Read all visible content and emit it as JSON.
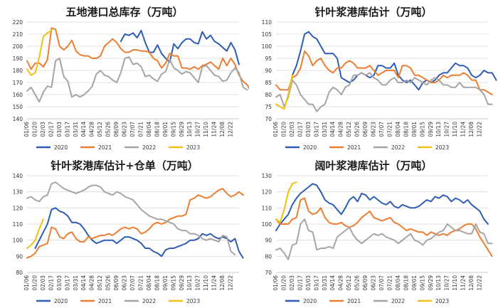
{
  "chart_data": [
    {
      "type": "line",
      "title": "五地港口总库存（万吨）",
      "ylim": [
        140,
        220
      ],
      "yticks": [
        140,
        150,
        160,
        170,
        180,
        190,
        200,
        210,
        220
      ],
      "x_tick_labels": [
        "01/06",
        "01/20",
        "02/03",
        "02/17",
        "03/03",
        "03/17",
        "03/31",
        "04/14",
        "04/28",
        "05/12",
        "05/26",
        "06/09",
        "06/23",
        "07/07",
        "07/21",
        "08/04",
        "08/18",
        "09/01",
        "09/15",
        "09/29",
        "10/13",
        "10/27",
        "11/10",
        "11/24",
        "12/08",
        "12/22"
      ],
      "series": [
        {
          "name": "2020",
          "color": "#2f5db5",
          "start_week": 23,
          "values": [
            204,
            210,
            209,
            211,
            207,
            213,
            203,
            195,
            195,
            201,
            194,
            190,
            187,
            202,
            198,
            203,
            206,
            206,
            203,
            202,
            212,
            206,
            209,
            204,
            202,
            199,
            196,
            203,
            197,
            185
          ]
        },
        {
          "name": "2021",
          "color": "#ed7d31",
          "start_week": 0,
          "values": [
            188,
            181,
            186,
            186,
            183,
            189,
            215,
            214,
            200,
            197,
            200,
            205,
            196,
            193,
            192,
            192,
            190,
            190,
            192,
            200,
            203,
            206,
            203,
            198,
            195,
            195,
            197,
            197,
            196,
            196,
            195,
            190,
            188,
            182,
            186,
            194,
            192,
            192,
            182,
            182,
            181,
            183,
            181,
            184,
            185,
            187,
            184,
            181,
            190,
            184,
            190,
            185,
            176,
            171,
            168,
            162
          ]
        },
        {
          "name": "2022",
          "color": "#a5a5a5",
          "start_week": 0,
          "values": [
            163,
            166,
            160,
            154,
            162,
            167,
            166,
            188,
            190,
            175,
            171,
            158,
            160,
            158,
            160,
            163,
            167,
            177,
            180,
            176,
            175,
            172,
            170,
            178,
            190,
            191,
            185,
            186,
            183,
            175,
            176,
            173,
            171,
            177,
            179,
            189,
            182,
            180,
            177,
            179,
            178,
            174,
            170,
            183,
            184,
            180,
            176,
            175,
            171,
            172,
            178,
            182,
            178,
            166,
            164
          ]
        },
        {
          "name": "2023",
          "color": "#f0c010",
          "start_week": 0,
          "values": [
            181,
            176,
            178,
            191,
            208,
            211,
            213
          ]
        }
      ]
    },
    {
      "type": "line",
      "title": "针叶浆港库估计（万吨）",
      "ylim": [
        70,
        110
      ],
      "yticks": [
        70,
        75,
        80,
        85,
        90,
        95,
        100,
        105,
        110
      ],
      "x_tick_labels": [
        "01/06",
        "01/20",
        "02/03",
        "02/17",
        "03/03",
        "03/17",
        "03/31",
        "04/14",
        "04/28",
        "05/12",
        "05/26",
        "06/09",
        "06/23",
        "07/07",
        "07/21",
        "08/04",
        "08/18",
        "09/01",
        "09/15",
        "09/29",
        "10/13",
        "10/27",
        "11/10",
        "11/24",
        "12/08",
        "12/22"
      ],
      "series": [
        {
          "name": "2020",
          "color": "#2f5db5",
          "start_week": 4,
          "values": [
            88,
            92,
            98,
            105,
            106,
            104,
            103,
            100,
            97,
            97,
            97,
            95,
            87,
            86,
            85,
            86,
            88,
            89,
            88,
            87,
            88,
            92,
            92,
            91,
            91,
            93,
            88,
            86,
            85,
            86,
            84,
            82,
            85,
            86,
            85,
            86,
            88,
            89,
            89,
            91,
            93,
            92,
            92,
            91,
            88,
            87,
            88,
            90,
            89,
            89,
            86
          ]
        },
        {
          "name": "2021",
          "color": "#ed7d31",
          "start_week": 0,
          "values": [
            84,
            82,
            82,
            82,
            87,
            88,
            91,
            98,
            96,
            92,
            94,
            95,
            92,
            90,
            89,
            91,
            91,
            93,
            94,
            93,
            91,
            91,
            91,
            92,
            90,
            88,
            89,
            90,
            90,
            90,
            87,
            92,
            92,
            91,
            88,
            88,
            87,
            86,
            85,
            85,
            86,
            88,
            87,
            88,
            88,
            88,
            89,
            88,
            86,
            86,
            82,
            82,
            81,
            80
          ]
        },
        {
          "name": "2022",
          "color": "#a5a5a5",
          "start_week": 0,
          "values": [
            79,
            80,
            75,
            79,
            86,
            84,
            80,
            78,
            76,
            76,
            73,
            75,
            76,
            81,
            83,
            82,
            80,
            83,
            84,
            88,
            88,
            89,
            88,
            89,
            87,
            86,
            84,
            84,
            86,
            87,
            85,
            85,
            86,
            85,
            87,
            86,
            85,
            84,
            86,
            87,
            86,
            84,
            84,
            83,
            83,
            85,
            83,
            83,
            83,
            83,
            82,
            80,
            76,
            76
          ]
        },
        {
          "name": "2023",
          "color": "#f0c010",
          "start_week": 0,
          "values": [
            76,
            75,
            74,
            80,
            88
          ]
        }
      ]
    },
    {
      "type": "line",
      "title": "针叶浆港库估计+仓单（万吨）",
      "ylim": [
        80,
        140
      ],
      "yticks": [
        80,
        90,
        100,
        110,
        120,
        130,
        140
      ],
      "x_tick_labels": [
        "01/06",
        "01/20",
        "02/03",
        "02/17",
        "03/03",
        "03/17",
        "03/31",
        "04/14",
        "04/28",
        "05/12",
        "05/26",
        "06/09",
        "06/23",
        "07/07",
        "07/21",
        "08/04",
        "08/18",
        "09/01",
        "09/15",
        "09/29",
        "10/13",
        "10/27",
        "11/10",
        "11/24",
        "12/08",
        "12/22"
      ],
      "series": [
        {
          "name": "2020",
          "color": "#2f5db5",
          "start_week": 2,
          "values": [
            95,
            100,
            105,
            110,
            119,
            120,
            118,
            117,
            115,
            111,
            111,
            110,
            107,
            103,
            100,
            98,
            99,
            100,
            100,
            100,
            98,
            100,
            102,
            102,
            101,
            100,
            98,
            95,
            95,
            93,
            92,
            90,
            94,
            95,
            95,
            96,
            97,
            98,
            100,
            100,
            101,
            104,
            103,
            104,
            102,
            101,
            102,
            101,
            99,
            101,
            93,
            89
          ]
        },
        {
          "name": "2021",
          "color": "#ed7d31",
          "start_week": 0,
          "values": [
            89,
            90,
            92,
            96,
            97,
            98,
            108,
            107,
            102,
            101,
            104,
            105,
            101,
            99,
            99,
            102,
            101,
            102,
            103,
            103,
            104,
            103,
            105,
            107,
            108,
            107,
            108,
            107,
            104,
            105,
            107,
            110,
            111,
            110,
            111,
            113,
            114,
            115,
            115,
            116,
            125,
            126,
            128,
            127,
            126,
            127,
            129,
            131,
            132,
            129,
            127,
            128,
            130,
            128
          ]
        },
        {
          "name": "2022",
          "color": "#a5a5a5",
          "start_week": 0,
          "values": [
            126,
            127,
            125,
            124,
            127,
            128,
            135,
            136,
            134,
            132,
            131,
            130,
            129,
            130,
            131,
            133,
            134,
            134,
            133,
            130,
            129,
            128,
            130,
            129,
            127,
            126,
            125,
            122,
            119,
            117,
            115,
            114,
            113,
            113,
            112,
            111,
            110,
            107,
            106,
            106,
            104,
            104,
            103,
            101,
            100,
            101,
            100,
            99,
            103,
            102,
            93,
            91
          ]
        },
        {
          "name": "2023",
          "color": "#f0c010",
          "start_week": 0,
          "values": [
            95,
            97,
            100,
            107,
            113
          ]
        }
      ]
    },
    {
      "type": "line",
      "title": "阔叶浆港库估计（万吨）",
      "ylim": [
        70,
        130
      ],
      "yticks": [
        70,
        80,
        90,
        100,
        110,
        120,
        130
      ],
      "x_tick_labels": [
        "01/06",
        "01/20",
        "02/03",
        "02/17",
        "03/03",
        "03/17",
        "03/31",
        "04/14",
        "04/28",
        "05/12",
        "05/26",
        "06/09",
        "06/23",
        "07/07",
        "07/21",
        "08/04",
        "08/18",
        "09/01",
        "09/15",
        "09/29",
        "10/13",
        "10/27",
        "11/10",
        "11/24",
        "12/08",
        "12/22"
      ],
      "series": [
        {
          "name": "2020",
          "color": "#2f5db5",
          "start_week": 0,
          "values": [
            96,
            100,
            103,
            106,
            112,
            116,
            119,
            121,
            123,
            125,
            124,
            120,
            115,
            113,
            112,
            109,
            106,
            110,
            115,
            117,
            114,
            119,
            118,
            115,
            117,
            115,
            113,
            112,
            114,
            111,
            110,
            112,
            111,
            110,
            110,
            111,
            113,
            115,
            114,
            117,
            116,
            118,
            117,
            114,
            116,
            115,
            113,
            115,
            112,
            110,
            108,
            103,
            100
          ]
        },
        {
          "name": "2021",
          "color": "#ed7d31",
          "start_week": 0,
          "values": [
            103,
            100,
            100,
            100,
            103,
            104,
            115,
            116,
            108,
            106,
            107,
            110,
            104,
            101,
            100,
            100,
            101,
            99,
            98,
            99,
            101,
            104,
            106,
            108,
            104,
            103,
            102,
            103,
            104,
            101,
            100,
            98,
            96,
            97,
            96,
            95,
            95,
            93,
            95,
            94,
            93,
            94,
            93,
            95,
            96,
            97,
            99,
            100,
            100,
            97,
            92,
            88,
            84,
            80
          ]
        },
        {
          "name": "2022",
          "color": "#a5a5a5",
          "start_week": 0,
          "values": [
            84,
            85,
            82,
            78,
            87,
            88,
            100,
            103,
            96,
            95,
            84,
            85,
            85,
            86,
            85,
            92,
            94,
            96,
            98,
            93,
            90,
            88,
            90,
            92,
            94,
            93,
            94,
            92,
            91,
            90,
            88,
            90,
            92,
            94,
            90,
            89,
            87,
            90,
            91,
            93,
            95,
            96,
            100,
            98,
            96,
            96,
            95,
            94,
            94,
            100,
            95,
            94,
            88,
            88
          ]
        },
        {
          "name": "2023",
          "color": "#f0c010",
          "start_week": 0,
          "values": [
            103,
            101,
            109,
            120,
            125,
            126
          ]
        }
      ]
    }
  ]
}
